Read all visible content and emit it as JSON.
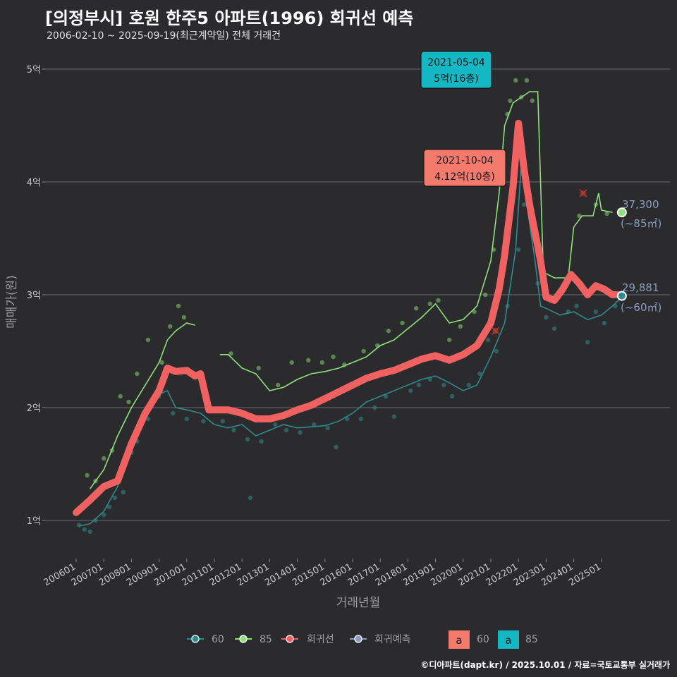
{
  "header": {
    "title": "[의정부시] 호원 한주5 아파트(1996) 회귀선 예측",
    "subtitle": "2006-02-10 ~ 2025-09-19(최근계약일) 전체 거래건"
  },
  "footer": "©디아파트(dapt.kr) / 2025.10.01 / 자료=국토교통부 실거래가",
  "colors": {
    "background": "#2b2b2d",
    "s60": "#2f8a8f",
    "s85": "#8ee07a",
    "regression": "#f06262",
    "forecast": "#8a9cc0",
    "grid": "#6a6a6a"
  },
  "annotations": [
    {
      "line1": "2021-05-04",
      "line2": "5억(16층)",
      "color": "#14b8c4"
    },
    {
      "line1": "2021-10-04",
      "line2": "4.12억(10층)",
      "color": "#f57a6e"
    }
  ],
  "end_labels": [
    {
      "line1": "37,300",
      "line2": "(~85㎡)"
    },
    {
      "line1": "29,881",
      "line2": "(~60㎡)"
    }
  ],
  "legend": {
    "items": [
      {
        "label": "60",
        "color": "#2f8a8f"
      },
      {
        "label": "85",
        "color": "#8ee07a"
      },
      {
        "label": "회귀선",
        "color": "#f06262"
      },
      {
        "label": "회귀예측",
        "color": "#8a9cc0"
      }
    ],
    "boxes": [
      {
        "glyph": "a",
        "label": "60",
        "color": "#f57a6e"
      },
      {
        "glyph": "a",
        "label": "85",
        "color": "#14b8c4"
      }
    ]
  },
  "chart_data": {
    "type": "line",
    "title": "[의정부시] 호원 한주5 아파트(1996) 회귀선 예측",
    "xlabel": "거래년월",
    "ylabel": "매매가(원)",
    "x_tick_labels": [
      "200601",
      "200701",
      "200801",
      "200901",
      "201001",
      "201101",
      "201201",
      "201301",
      "201401",
      "201501",
      "201601",
      "201701",
      "201801",
      "201901",
      "202001",
      "202101",
      "202201",
      "202301",
      "202401",
      "202501"
    ],
    "y_tick_labels": [
      "1억",
      "2억",
      "3억",
      "4억",
      "5억"
    ],
    "ylim": [
      0.7,
      5.3
    ],
    "xlim": [
      2005.6,
      2026.7
    ],
    "series": [
      {
        "name": "60",
        "unit": "억",
        "points": [
          [
            2006.1,
            0.95
          ],
          [
            2006.5,
            0.97
          ],
          [
            2007.0,
            1.08
          ],
          [
            2007.5,
            1.3
          ],
          [
            2008.0,
            1.65
          ],
          [
            2008.5,
            1.95
          ],
          [
            2009.0,
            2.12
          ],
          [
            2009.3,
            2.15
          ],
          [
            2009.6,
            2.0
          ],
          [
            2010.0,
            1.98
          ],
          [
            2010.5,
            1.95
          ],
          [
            2011.0,
            1.85
          ],
          [
            2011.5,
            1.82
          ],
          [
            2012.0,
            1.85
          ],
          [
            2012.5,
            1.75
          ],
          [
            2013.0,
            1.8
          ],
          [
            2013.5,
            1.85
          ],
          [
            2014.0,
            1.82
          ],
          [
            2014.5,
            1.83
          ],
          [
            2015.0,
            1.84
          ],
          [
            2015.5,
            1.88
          ],
          [
            2016.0,
            1.95
          ],
          [
            2016.5,
            2.05
          ],
          [
            2017.0,
            2.1
          ],
          [
            2017.5,
            2.15
          ],
          [
            2018.0,
            2.2
          ],
          [
            2018.5,
            2.25
          ],
          [
            2019.0,
            2.28
          ],
          [
            2019.5,
            2.22
          ],
          [
            2020.0,
            2.15
          ],
          [
            2020.5,
            2.2
          ],
          [
            2021.0,
            2.45
          ],
          [
            2021.5,
            2.75
          ],
          [
            2021.9,
            3.4
          ],
          [
            2022.1,
            4.15
          ],
          [
            2022.3,
            3.8
          ],
          [
            2022.6,
            3.3
          ],
          [
            2022.8,
            2.9
          ],
          [
            2023.0,
            2.88
          ],
          [
            2023.5,
            2.82
          ],
          [
            2024.0,
            2.85
          ],
          [
            2024.5,
            2.78
          ],
          [
            2025.0,
            2.82
          ],
          [
            2025.4,
            2.9
          ],
          [
            2025.7,
            2.97
          ]
        ]
      },
      {
        "name": "85",
        "unit": "억",
        "points": [
          [
            2006.5,
            1.28
          ],
          [
            2007.0,
            1.45
          ],
          [
            2007.5,
            1.75
          ],
          [
            2008.0,
            2.0
          ],
          [
            2008.5,
            2.2
          ],
          [
            2009.0,
            2.4
          ],
          [
            2009.3,
            2.6
          ],
          [
            2009.6,
            2.68
          ],
          [
            2010.0,
            2.75
          ],
          [
            2010.3,
            2.73
          ],
          [
            2010.6,
            null
          ],
          [
            2011.2,
            2.47
          ],
          [
            2011.5,
            2.47
          ],
          [
            2012.0,
            2.35
          ],
          [
            2012.5,
            2.3
          ],
          [
            2013.0,
            2.15
          ],
          [
            2013.5,
            2.18
          ],
          [
            2014.0,
            2.25
          ],
          [
            2014.5,
            2.3
          ],
          [
            2015.0,
            2.32
          ],
          [
            2015.5,
            2.35
          ],
          [
            2016.0,
            2.4
          ],
          [
            2016.5,
            2.45
          ],
          [
            2017.0,
            2.55
          ],
          [
            2017.5,
            2.6
          ],
          [
            2018.0,
            2.7
          ],
          [
            2018.5,
            2.8
          ],
          [
            2019.0,
            2.92
          ],
          [
            2019.5,
            2.75
          ],
          [
            2020.0,
            2.78
          ],
          [
            2020.5,
            2.9
          ],
          [
            2021.0,
            3.3
          ],
          [
            2021.3,
            3.9
          ],
          [
            2021.5,
            4.5
          ],
          [
            2021.8,
            4.7
          ],
          [
            2022.1,
            4.75
          ],
          [
            2022.4,
            4.8
          ],
          [
            2022.7,
            4.8
          ],
          [
            2022.9,
            3.2
          ],
          [
            2023.3,
            3.15
          ],
          [
            2023.8,
            3.15
          ],
          [
            2024.0,
            3.6
          ],
          [
            2024.3,
            3.7
          ],
          [
            2024.7,
            3.7
          ],
          [
            2024.9,
            3.9
          ],
          [
            2025.0,
            3.75
          ],
          [
            2025.4,
            3.73
          ]
        ]
      },
      {
        "name": "회귀선",
        "unit": "억",
        "points": [
          [
            2006.0,
            1.07
          ],
          [
            2006.5,
            1.18
          ],
          [
            2007.0,
            1.3
          ],
          [
            2007.5,
            1.35
          ],
          [
            2008.0,
            1.68
          ],
          [
            2008.5,
            1.95
          ],
          [
            2009.0,
            2.15
          ],
          [
            2009.3,
            2.35
          ],
          [
            2009.6,
            2.32
          ],
          [
            2010.0,
            2.33
          ],
          [
            2010.3,
            2.28
          ],
          [
            2010.5,
            2.3
          ],
          [
            2010.8,
            1.98
          ],
          [
            2011.5,
            1.98
          ],
          [
            2012.0,
            1.95
          ],
          [
            2012.5,
            1.9
          ],
          [
            2013.0,
            1.9
          ],
          [
            2013.5,
            1.93
          ],
          [
            2014.0,
            1.98
          ],
          [
            2014.5,
            2.02
          ],
          [
            2015.0,
            2.08
          ],
          [
            2015.5,
            2.14
          ],
          [
            2016.0,
            2.2
          ],
          [
            2016.5,
            2.26
          ],
          [
            2017.0,
            2.3
          ],
          [
            2017.5,
            2.33
          ],
          [
            2018.0,
            2.38
          ],
          [
            2018.5,
            2.43
          ],
          [
            2019.0,
            2.46
          ],
          [
            2019.5,
            2.42
          ],
          [
            2020.0,
            2.47
          ],
          [
            2020.5,
            2.55
          ],
          [
            2021.0,
            2.75
          ],
          [
            2021.3,
            3.05
          ],
          [
            2021.5,
            3.35
          ],
          [
            2021.8,
            3.95
          ],
          [
            2022.0,
            4.52
          ],
          [
            2022.2,
            4.12
          ],
          [
            2022.4,
            3.8
          ],
          [
            2022.6,
            3.55
          ],
          [
            2022.8,
            3.3
          ],
          [
            2023.0,
            2.98
          ],
          [
            2023.3,
            2.95
          ],
          [
            2023.6,
            3.05
          ],
          [
            2023.9,
            3.18
          ],
          [
            2024.2,
            3.1
          ],
          [
            2024.5,
            3.0
          ],
          [
            2024.8,
            3.08
          ],
          [
            2025.1,
            3.05
          ],
          [
            2025.4,
            3.0
          ],
          [
            2025.6,
            3.0
          ]
        ]
      },
      {
        "name": "회귀예측",
        "unit": "억",
        "points": [
          [
            2025.74,
            3.73
          ],
          [
            2025.74,
            2.99
          ]
        ]
      }
    ],
    "scatter_points_60": [
      [
        2006.1,
        0.96
      ],
      [
        2006.3,
        0.92
      ],
      [
        2006.5,
        0.9
      ],
      [
        2006.7,
        1.0
      ],
      [
        2007.0,
        1.05
      ],
      [
        2007.2,
        1.12
      ],
      [
        2007.4,
        1.2
      ],
      [
        2007.7,
        1.25
      ],
      [
        2008.0,
        1.6
      ],
      [
        2008.2,
        1.7
      ],
      [
        2008.6,
        1.9
      ],
      [
        2009.0,
        2.1
      ],
      [
        2009.5,
        1.95
      ],
      [
        2010.0,
        1.9
      ],
      [
        2010.6,
        1.88
      ],
      [
        2011.3,
        1.88
      ],
      [
        2011.7,
        1.8
      ],
      [
        2012.2,
        1.72
      ],
      [
        2012.3,
        1.2
      ],
      [
        2012.7,
        1.7
      ],
      [
        2013.2,
        1.85
      ],
      [
        2013.6,
        1.8
      ],
      [
        2014.1,
        1.78
      ],
      [
        2014.6,
        1.85
      ],
      [
        2015.1,
        1.82
      ],
      [
        2015.4,
        1.65
      ],
      [
        2015.8,
        1.9
      ],
      [
        2016.3,
        1.9
      ],
      [
        2016.8,
        2.0
      ],
      [
        2017.2,
        2.1
      ],
      [
        2017.5,
        1.92
      ],
      [
        2018.1,
        2.15
      ],
      [
        2018.4,
        2.2
      ],
      [
        2018.8,
        2.25
      ],
      [
        2019.3,
        2.2
      ],
      [
        2019.6,
        2.1
      ],
      [
        2020.2,
        2.2
      ],
      [
        2020.6,
        2.3
      ],
      [
        2020.9,
        2.6
      ],
      [
        2021.2,
        2.5
      ],
      [
        2021.6,
        2.9
      ],
      [
        2022.0,
        3.4
      ],
      [
        2022.2,
        3.8
      ],
      [
        2022.7,
        3.1
      ],
      [
        2023.0,
        2.8
      ],
      [
        2023.3,
        2.7
      ],
      [
        2023.8,
        2.85
      ],
      [
        2024.1,
        2.9
      ],
      [
        2024.5,
        2.58
      ],
      [
        2024.8,
        2.85
      ],
      [
        2025.1,
        2.75
      ],
      [
        2025.5,
        2.9
      ]
    ],
    "scatter_points_85": [
      [
        2006.4,
        1.4
      ],
      [
        2006.7,
        1.35
      ],
      [
        2007.0,
        1.55
      ],
      [
        2007.3,
        1.62
      ],
      [
        2007.6,
        2.1
      ],
      [
        2007.9,
        2.05
      ],
      [
        2008.2,
        2.3
      ],
      [
        2008.6,
        2.6
      ],
      [
        2009.1,
        2.4
      ],
      [
        2009.4,
        2.72
      ],
      [
        2009.7,
        2.9
      ],
      [
        2009.9,
        2.8
      ],
      [
        2011.6,
        2.48
      ],
      [
        2012.6,
        2.35
      ],
      [
        2013.3,
        2.2
      ],
      [
        2013.8,
        2.4
      ],
      [
        2014.4,
        2.42
      ],
      [
        2014.9,
        2.4
      ],
      [
        2015.3,
        2.45
      ],
      [
        2015.7,
        2.38
      ],
      [
        2016.4,
        2.5
      ],
      [
        2016.9,
        2.55
      ],
      [
        2017.3,
        2.68
      ],
      [
        2017.8,
        2.75
      ],
      [
        2018.3,
        2.88
      ],
      [
        2018.8,
        2.92
      ],
      [
        2019.1,
        2.95
      ],
      [
        2019.5,
        2.6
      ],
      [
        2019.9,
        2.72
      ],
      [
        2020.4,
        2.85
      ],
      [
        2020.8,
        3.0
      ],
      [
        2021.1,
        3.4
      ],
      [
        2021.4,
        4.0
      ],
      [
        2021.6,
        4.6
      ],
      [
        2021.7,
        4.72
      ],
      [
        2021.9,
        4.9
      ],
      [
        2022.1,
        4.75
      ],
      [
        2022.3,
        4.9
      ],
      [
        2022.5,
        4.72
      ],
      [
        2024.2,
        3.7
      ],
      [
        2024.8,
        3.8
      ],
      [
        2025.2,
        3.72
      ]
    ],
    "extra_regression_marks": [
      [
        2021.17,
        2.68
      ],
      [
        2024.34,
        3.9
      ]
    ]
  }
}
